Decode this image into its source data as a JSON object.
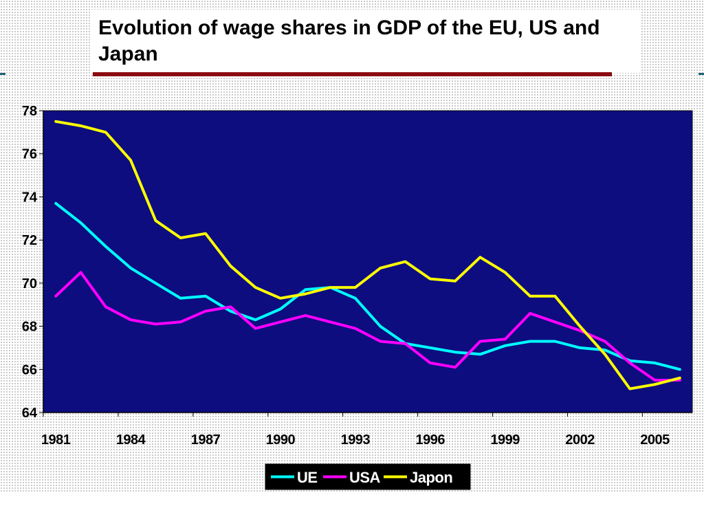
{
  "title": "Evolution of wage shares in GDP of the EU, US and Japan",
  "colors": {
    "plot_background": "#0d0d80",
    "title_rule": "#8b0a10",
    "side_line": "#1f5f7a"
  },
  "chart_data": {
    "type": "line",
    "title": "Evolution of wage shares in GDP of the EU, US and Japan",
    "xlabel": "",
    "ylabel": "",
    "x": [
      1981,
      1982,
      1983,
      1984,
      1985,
      1986,
      1987,
      1988,
      1989,
      1990,
      1991,
      1992,
      1993,
      1994,
      1995,
      1996,
      1997,
      1998,
      1999,
      2000,
      2001,
      2002,
      2003,
      2004,
      2005,
      2006
    ],
    "xlim": [
      1981,
      2006
    ],
    "ylim": [
      64,
      78
    ],
    "y_ticks": [
      78,
      76,
      74,
      72,
      70,
      68,
      66,
      64
    ],
    "x_tick_labels": [
      "1981",
      "1984",
      "1987",
      "1990",
      "1993",
      "1996",
      "1999",
      "2002",
      "2005"
    ],
    "grid": false,
    "legend_position": "bottom",
    "series": [
      {
        "name": "UE",
        "color": "#00ffff",
        "values": [
          73.7,
          72.8,
          71.7,
          70.7,
          70.0,
          69.3,
          69.4,
          68.7,
          68.3,
          68.8,
          69.7,
          69.8,
          69.3,
          68.0,
          67.2,
          67.0,
          66.8,
          66.7,
          67.1,
          67.3,
          67.3,
          67.0,
          66.9,
          66.4,
          66.3,
          66.0
        ]
      },
      {
        "name": "USA",
        "color": "#ff00ff",
        "values": [
          69.4,
          70.5,
          68.9,
          68.3,
          68.1,
          68.2,
          68.7,
          68.9,
          67.9,
          68.2,
          68.5,
          68.2,
          67.9,
          67.3,
          67.2,
          66.3,
          66.1,
          67.3,
          67.4,
          68.6,
          68.2,
          67.8,
          67.3,
          66.3,
          65.5,
          65.5
        ]
      },
      {
        "name": "Japon",
        "color": "#ffff00",
        "values": [
          77.5,
          77.3,
          77.0,
          75.7,
          72.9,
          72.1,
          72.3,
          70.8,
          69.8,
          69.3,
          69.5,
          69.8,
          69.8,
          70.7,
          71.0,
          70.2,
          70.1,
          71.2,
          70.5,
          69.4,
          69.4,
          68.0,
          66.7,
          65.1,
          65.3,
          65.6
        ]
      }
    ]
  }
}
